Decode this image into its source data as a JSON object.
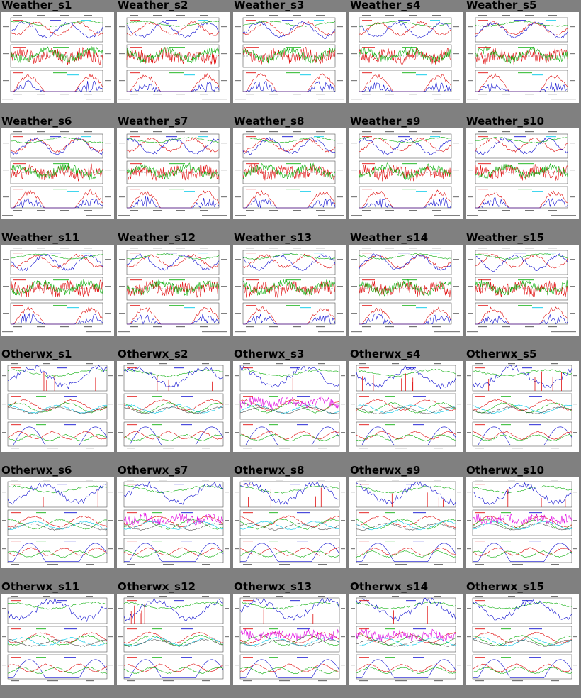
{
  "colors": {
    "background": "#808080",
    "panel": "#ffffff",
    "series_red": "#e01010",
    "series_blue": "#1010d0",
    "series_green": "#10b010",
    "series_cyan": "#00c8e8",
    "series_magenta": "#e000e0"
  },
  "rows": [
    {
      "cells": [
        {
          "label": "Weather_s1",
          "kind": "weather"
        },
        {
          "label": "Weather_s2",
          "kind": "weather"
        },
        {
          "label": "Weather_s3",
          "kind": "weather"
        },
        {
          "label": "Weather_s4",
          "kind": "weather"
        },
        {
          "label": "Weather_s5",
          "kind": "weather"
        }
      ]
    },
    {
      "cells": [
        {
          "label": "Weather_s6",
          "kind": "weather"
        },
        {
          "label": "Weather_s7",
          "kind": "weather"
        },
        {
          "label": "Weather_s8",
          "kind": "weather"
        },
        {
          "label": "Weather_s9",
          "kind": "weather"
        },
        {
          "label": "Weather_s10",
          "kind": "weather"
        }
      ]
    },
    {
      "cells": [
        {
          "label": "Weather_s11",
          "kind": "weather"
        },
        {
          "label": "Weather_s12",
          "kind": "weather"
        },
        {
          "label": "Weather_s13",
          "kind": "weather"
        },
        {
          "label": "Weather_s14",
          "kind": "weather"
        },
        {
          "label": "Weather_s15",
          "kind": "weather"
        }
      ]
    },
    {
      "cells": [
        {
          "label": "Otherwx_s1",
          "kind": "otherwx"
        },
        {
          "label": "Otherwx_s2",
          "kind": "otherwx"
        },
        {
          "label": "Otherwx_s3",
          "kind": "otherwx"
        },
        {
          "label": "Otherwx_s4",
          "kind": "otherwx"
        },
        {
          "label": "Otherwx_s5",
          "kind": "otherwx"
        }
      ]
    },
    {
      "cells": [
        {
          "label": "Otherwx_s6",
          "kind": "otherwx"
        },
        {
          "label": "Otherwx_s7",
          "kind": "otherwx"
        },
        {
          "label": "Otherwx_s8",
          "kind": "otherwx"
        },
        {
          "label": "Otherwx_s9",
          "kind": "otherwx"
        },
        {
          "label": "Otherwx_s10",
          "kind": "otherwx"
        }
      ]
    },
    {
      "cells": [
        {
          "label": "Otherwx_s11",
          "kind": "otherwx"
        },
        {
          "label": "Otherwx_s12",
          "kind": "otherwx"
        },
        {
          "label": "Otherwx_s13",
          "kind": "otherwx"
        },
        {
          "label": "Otherwx_s14",
          "kind": "otherwx"
        },
        {
          "label": "Otherwx_s15",
          "kind": "otherwx"
        }
      ]
    }
  ]
}
